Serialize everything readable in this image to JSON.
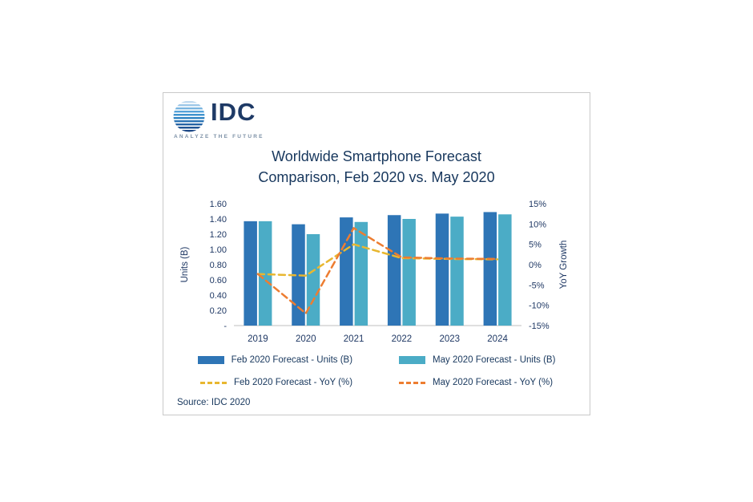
{
  "logo": {
    "name": "IDC",
    "tagline": "ANALYZE THE FUTURE"
  },
  "title": {
    "line1": "Worldwide Smartphone Forecast",
    "line2": "Comparison, Feb 2020 vs. May 2020"
  },
  "legend": {
    "items": [
      {
        "label": "Feb 2020 Forecast - Units (B)",
        "type": "bar",
        "color": "#2e75b6"
      },
      {
        "label": "May 2020 Forecast - Units (B)",
        "type": "bar",
        "color": "#4bacc6"
      },
      {
        "label": "Feb 2020 Forecast - YoY (%)",
        "type": "line",
        "color": "#e8b730"
      },
      {
        "label": "May 2020 Forecast - YoY (%)",
        "type": "line",
        "color": "#ed7d31"
      }
    ]
  },
  "chart_data": {
    "type": "combo",
    "title": "Worldwide Smartphone Forecast Comparison, Feb 2020 vs. May 2020",
    "source": "Source: IDC 2020",
    "categories": [
      "2019",
      "2020",
      "2021",
      "2022",
      "2023",
      "2024"
    ],
    "bar_series": [
      {
        "name": "Feb 2020 Forecast - Units (B)",
        "color": "#2e75b6",
        "axis": "left",
        "values": [
          1.37,
          1.33,
          1.42,
          1.45,
          1.47,
          1.49
        ]
      },
      {
        "name": "May 2020 Forecast - Units (B)",
        "color": "#4bacc6",
        "axis": "left",
        "values": [
          1.37,
          1.2,
          1.36,
          1.4,
          1.43,
          1.46
        ]
      }
    ],
    "line_series": [
      {
        "name": "Feb 2020 Forecast - YoY (%)",
        "color": "#e8b730",
        "dashed": true,
        "axis": "right",
        "values": [
          -2.3,
          -2.7,
          5.0,
          1.6,
          1.4,
          1.3
        ]
      },
      {
        "name": "May 2020 Forecast - YoY (%)",
        "color": "#ed7d31",
        "dashed": true,
        "axis": "right",
        "values": [
          -2.3,
          -12.0,
          9.0,
          1.8,
          1.5,
          1.4
        ]
      }
    ],
    "left_axis": {
      "label": "Units (B)",
      "min": 0,
      "max": 1.6,
      "step": 0.2,
      "tick_labels": [
        "-",
        "0.20",
        "0.40",
        "0.60",
        "0.80",
        "1.00",
        "1.20",
        "1.40",
        "1.60"
      ]
    },
    "right_axis": {
      "label": "YoY Growth",
      "min": -15,
      "max": 15,
      "step": 5,
      "tick_labels": [
        "-15%",
        "-10%",
        "-5%",
        "0%",
        "5%",
        "10%",
        "15%"
      ]
    },
    "grid": false,
    "legend_position": "bottom"
  },
  "colors": {
    "title_text": "#17375d",
    "axis_text": "#1f3864",
    "card_border": "#c9c9c9"
  }
}
